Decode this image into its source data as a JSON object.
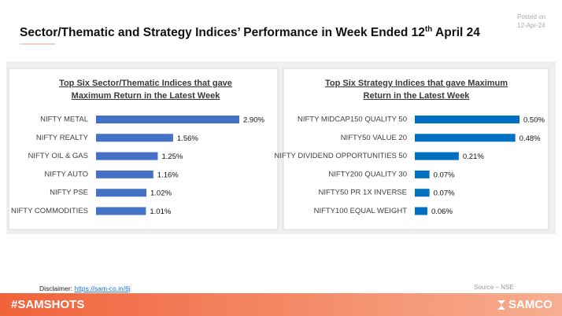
{
  "title": [
    "Sector/Thematic and Strategy Indices’ Performance in Week Ended 12",
    "th",
    " April 24"
  ],
  "posted_label": "Posted on",
  "posted_date": "12-Apr-24",
  "disclaimer_label": "Disclaimer:",
  "disclaimer_link": "https://sam-co.in/6j",
  "source": "Source – NSE",
  "footer_tag": "#SAMSHOTS",
  "footer_brand": "SAMCO",
  "chart_data": [
    {
      "type": "bar",
      "orientation": "horizontal",
      "title": [
        "Top Six Sector/Thematic Indices that gave",
        "Maximum Return in the Latest Week"
      ],
      "categories": [
        "NIFTY METAL",
        "NIFTY REALTY",
        "NIFTY OIL & GAS",
        "NIFTY AUTO",
        "NIFTY PSE",
        "NIFTY COMMODITIES"
      ],
      "values": [
        2.9,
        1.56,
        1.25,
        1.16,
        1.02,
        1.01
      ],
      "value_labels": [
        "2.90%",
        "1.56%",
        "1.25%",
        "1.16%",
        "1.02%",
        "1.01%"
      ],
      "color": "#4472c4"
    },
    {
      "type": "bar",
      "orientation": "horizontal",
      "title": [
        "Top Six Strategy Indices that gave Maximum",
        "Return in the Latest Week"
      ],
      "categories": [
        "NIFTY MIDCAP150 QUALITY 50",
        "NIFTY50 VALUE 20",
        "NIFTY DIVIDEND OPPORTUNITIES 50",
        "NIFTY200 QUALITY 30",
        "NIFTY50 PR 1X INVERSE",
        "NIFTY100 EQUAL WEIGHT"
      ],
      "values": [
        0.5,
        0.48,
        0.21,
        0.07,
        0.07,
        0.06
      ],
      "value_labels": [
        "0.50%",
        "0.48%",
        "0.21%",
        "0.07%",
        "0.07%",
        "0.06%"
      ],
      "color": "#0070c0"
    }
  ]
}
